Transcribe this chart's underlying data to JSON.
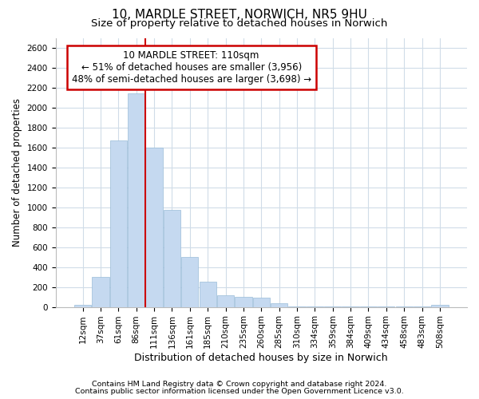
{
  "title1": "10, MARDLE STREET, NORWICH, NR5 9HU",
  "title2": "Size of property relative to detached houses in Norwich",
  "xlabel": "Distribution of detached houses by size in Norwich",
  "ylabel": "Number of detached properties",
  "bar_labels": [
    "12sqm",
    "37sqm",
    "61sqm",
    "86sqm",
    "111sqm",
    "136sqm",
    "161sqm",
    "185sqm",
    "210sqm",
    "235sqm",
    "260sqm",
    "285sqm",
    "310sqm",
    "334sqm",
    "359sqm",
    "384sqm",
    "409sqm",
    "434sqm",
    "458sqm",
    "483sqm",
    "508sqm"
  ],
  "bar_values": [
    18,
    300,
    1670,
    2140,
    1600,
    970,
    505,
    255,
    120,
    100,
    90,
    35,
    5,
    5,
    5,
    5,
    5,
    5,
    5,
    5,
    20
  ],
  "bar_color": "#c5d9f0",
  "bar_edgecolor": "#9abcd8",
  "vline_index": 4,
  "vline_color": "#cc0000",
  "annotation_title": "10 MARDLE STREET: 110sqm",
  "annotation_line1": "← 51% of detached houses are smaller (3,956)",
  "annotation_line2": "48% of semi-detached houses are larger (3,698) →",
  "annotation_box_facecolor": "#ffffff",
  "annotation_box_edgecolor": "#cc0000",
  "ylim": [
    0,
    2700
  ],
  "yticks": [
    0,
    200,
    400,
    600,
    800,
    1000,
    1200,
    1400,
    1600,
    1800,
    2000,
    2200,
    2400,
    2600
  ],
  "footnote1": "Contains HM Land Registry data © Crown copyright and database right 2024.",
  "footnote2": "Contains public sector information licensed under the Open Government Licence v3.0.",
  "bg_color": "#ffffff",
  "plot_bg_color": "#ffffff",
  "grid_color": "#d0dce8",
  "title_fontsize": 11,
  "subtitle_fontsize": 9.5,
  "tick_fontsize": 7.5,
  "xlabel_fontsize": 9,
  "ylabel_fontsize": 8.5,
  "footnote_fontsize": 6.8,
  "annot_fontsize": 8.5
}
